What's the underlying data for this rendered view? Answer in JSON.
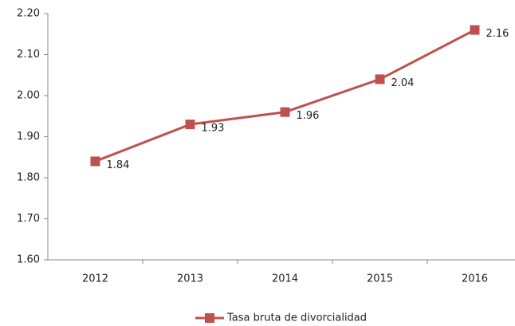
{
  "chart_data": {
    "type": "line",
    "categories": [
      "2012",
      "2013",
      "2014",
      "2015",
      "2016"
    ],
    "series": [
      {
        "name": "Tasa bruta de divorcialidad",
        "color": "#c0504d",
        "values": [
          1.84,
          1.93,
          1.96,
          2.04,
          2.16
        ]
      }
    ],
    "ylim": [
      1.6,
      2.2
    ],
    "yticks": [
      {
        "value": 1.6,
        "label": "1.60"
      },
      {
        "value": 1.7,
        "label": "1.70"
      },
      {
        "value": 1.8,
        "label": "1.80"
      },
      {
        "value": 1.9,
        "label": "1.90"
      },
      {
        "value": 2.0,
        "label": "2.00"
      },
      {
        "value": 2.1,
        "label": "2.10"
      },
      {
        "value": 2.2,
        "label": "2.20"
      }
    ],
    "grid": false,
    "legend": "bottom"
  }
}
